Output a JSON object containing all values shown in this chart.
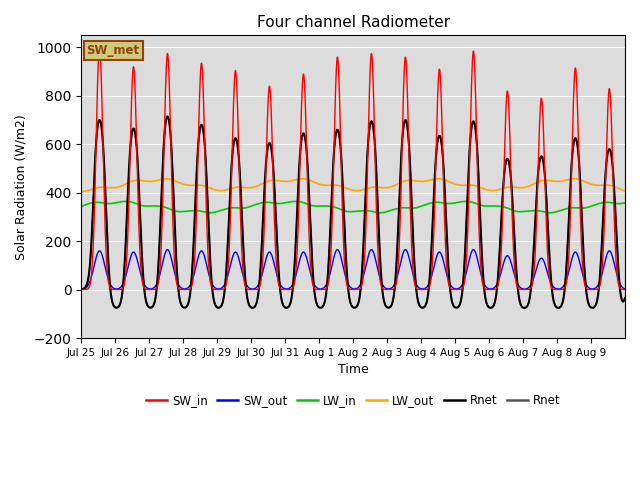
{
  "title": "Four channel Radiometer",
  "xlabel": "Time",
  "ylabel": "Solar Radiation (W/m2)",
  "ylim": [
    -200,
    1050
  ],
  "background_color": "#dcdcdc",
  "annotation_text": "SW_met",
  "annotation_bg": "#d4c97a",
  "annotation_border": "#8B4513",
  "tick_labels": [
    "Jul 25",
    "Jul 26",
    "Jul 27",
    "Jul 28",
    "Jul 29",
    "Jul 30",
    "Jul 31",
    "Aug 1",
    "Aug 2",
    "Aug 3",
    "Aug 4",
    "Aug 5",
    "Aug 6",
    "Aug 7",
    "Aug 8",
    "Aug 9"
  ],
  "n_days": 16,
  "sw_in_peaks": [
    1000,
    920,
    975,
    935,
    905,
    840,
    890,
    960,
    975,
    960,
    910,
    985,
    820,
    790,
    915,
    830
  ],
  "sw_out_peaks": [
    160,
    155,
    165,
    160,
    155,
    155,
    155,
    165,
    165,
    165,
    155,
    165,
    140,
    130,
    155,
    160
  ],
  "rnet_peaks": [
    700,
    665,
    715,
    680,
    625,
    605,
    645,
    660,
    695,
    700,
    635,
    695,
    540,
    550,
    625,
    580
  ],
  "rnet_night": -80,
  "lw_in_base": 330,
  "lw_out_base": 415,
  "colors": {
    "SW_in": "#ff0000",
    "SW_out": "#0000ff",
    "LW_in": "#00cc00",
    "LW_out": "#ffa500",
    "Rnet_black": "#000000",
    "Rnet_dark": "#555555"
  },
  "lw": {
    "SW_in": 1.0,
    "SW_out": 1.0,
    "LW_in": 1.2,
    "LW_out": 1.2,
    "Rnet_black": 1.5,
    "Rnet_dark": 1.0
  },
  "legend": [
    {
      "label": "SW_in",
      "color": "#ff0000"
    },
    {
      "label": "SW_out",
      "color": "#0000ff"
    },
    {
      "label": "LW_in",
      "color": "#00cc00"
    },
    {
      "label": "LW_out",
      "color": "#ffa500"
    },
    {
      "label": "Rnet",
      "color": "#000000"
    },
    {
      "label": "Rnet",
      "color": "#555555"
    }
  ]
}
